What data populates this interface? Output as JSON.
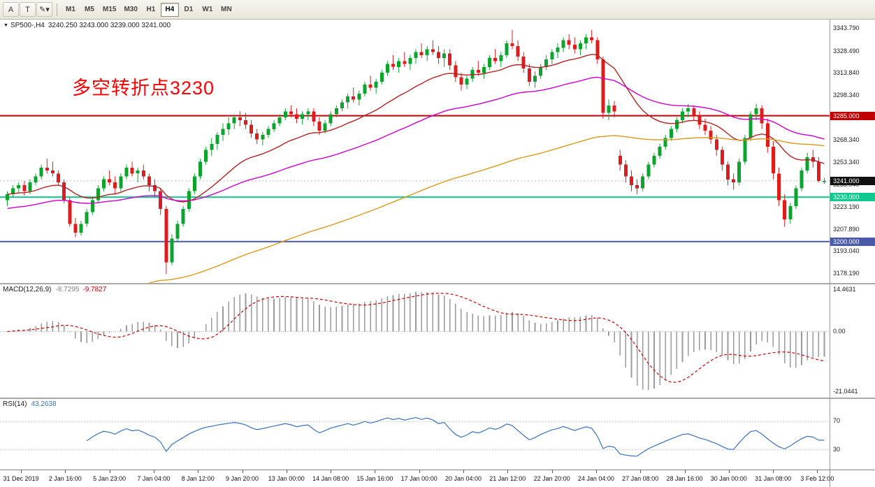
{
  "toolbar": {
    "tools": [
      {
        "label": "A",
        "name": "cursor-tool"
      },
      {
        "label": "T",
        "name": "text-tool"
      },
      {
        "label": "✎",
        "name": "draw-tool",
        "dropdown": "▾"
      }
    ],
    "timeframes": [
      "M1",
      "M5",
      "M15",
      "M30",
      "H1",
      "H4",
      "D1",
      "W1",
      "MN"
    ],
    "active_timeframe": "H4"
  },
  "main_chart": {
    "collapse_icon": "▼",
    "symbol_period": "SP500-,H4",
    "ohlc_text": "3240.250 3243.000 3239.000 3241.000",
    "annotation": {
      "text": "多空转折点3230",
      "color": "#ff0000"
    }
  },
  "indicators": {
    "macd": {
      "label": "MACD(12,26,9)",
      "value_main": "-8.7295",
      "value_signal": "-9.7827",
      "scale_labels": [
        "14.4631",
        "0.00",
        "-21.0441"
      ],
      "histogram_color": "#9a9a9a",
      "signal_color": "#cc0000"
    },
    "rsi": {
      "label": "RSI(14)",
      "value": "43.2638",
      "levels": [
        "70",
        "30"
      ],
      "line_color": "#3a72b8"
    }
  },
  "chart_data": {
    "type": "candlestick",
    "symbol": "SP500-",
    "timeframe": "H4",
    "up_color": "#0da32f",
    "down_color": "#dd1d1d",
    "y_range": {
      "min": 3172,
      "max": 3350
    },
    "y_axis_labels": [
      "3343.790",
      "3328.490",
      "3313.840",
      "3298.340",
      "3283.190",
      "3268.340",
      "3253.340",
      "3238.040",
      "3223.190",
      "3207.890",
      "3193.040",
      "3178.190"
    ],
    "x_labels": [
      "31 Dec 2019",
      "2 Jan 16:00",
      "5 Jan 23:00",
      "7 Jan 04:00",
      "8 Jan 12:00",
      "9 Jan 20:00",
      "13 Jan 00:00",
      "14 Jan 08:00",
      "15 Jan 16:00",
      "17 Jan 00:00",
      "20 Jan 04:00",
      "21 Jan 12:00",
      "22 Jan 20:00",
      "24 Jan 04:00",
      "27 Jan 08:00",
      "28 Jan 16:00",
      "30 Jan 00:00",
      "31 Jan 08:00",
      "3 Feb 12:00"
    ],
    "hlines": [
      {
        "value": 3285.0,
        "label": "3285.000",
        "color": "#c00000"
      },
      {
        "value": 3230.0,
        "label": "3230.000",
        "color": "#10c98f"
      },
      {
        "value": 3200.0,
        "label": "3200.000",
        "color": "#4a5aa8"
      }
    ],
    "current_price": {
      "value": 3241.0,
      "label": "3241.000",
      "color": "#111111"
    },
    "moving_averages": [
      {
        "period": 21,
        "color": "#b22222",
        "seed_offset": 0
      },
      {
        "period": 55,
        "color": "#cc00cc",
        "seed_offset": -10
      },
      {
        "period": 120,
        "color": "#d9991c",
        "seed_offset": -95
      }
    ],
    "ohlc": [
      [
        3228,
        3234,
        3224,
        3232
      ],
      [
        3232,
        3238,
        3230,
        3236
      ],
      [
        3236,
        3240,
        3233,
        3238
      ],
      [
        3238,
        3241,
        3231,
        3234
      ],
      [
        3234,
        3242,
        3232,
        3240
      ],
      [
        3240,
        3246,
        3238,
        3244
      ],
      [
        3244,
        3252,
        3242,
        3250
      ],
      [
        3250,
        3256,
        3246,
        3248
      ],
      [
        3248,
        3254,
        3244,
        3246
      ],
      [
        3246,
        3248,
        3238,
        3240
      ],
      [
        3240,
        3242,
        3226,
        3228
      ],
      [
        3228,
        3230,
        3210,
        3212
      ],
      [
        3212,
        3216,
        3203,
        3206
      ],
      [
        3206,
        3214,
        3204,
        3212
      ],
      [
        3212,
        3222,
        3210,
        3220
      ],
      [
        3220,
        3230,
        3218,
        3228
      ],
      [
        3228,
        3238,
        3226,
        3236
      ],
      [
        3236,
        3244,
        3234,
        3242
      ],
      [
        3242,
        3248,
        3238,
        3240
      ],
      [
        3240,
        3244,
        3232,
        3236
      ],
      [
        3236,
        3246,
        3234,
        3244
      ],
      [
        3244,
        3252,
        3242,
        3250
      ],
      [
        3250,
        3254,
        3244,
        3246
      ],
      [
        3246,
        3250,
        3240,
        3248
      ],
      [
        3248,
        3252,
        3242,
        3244
      ],
      [
        3244,
        3246,
        3234,
        3238
      ],
      [
        3238,
        3242,
        3230,
        3234
      ],
      [
        3234,
        3236,
        3218,
        3222
      ],
      [
        3222,
        3224,
        3178,
        3186
      ],
      [
        3186,
        3205,
        3184,
        3202
      ],
      [
        3202,
        3214,
        3200,
        3212
      ],
      [
        3212,
        3224,
        3210,
        3222
      ],
      [
        3222,
        3236,
        3220,
        3234
      ],
      [
        3234,
        3246,
        3232,
        3244
      ],
      [
        3244,
        3256,
        3242,
        3254
      ],
      [
        3254,
        3264,
        3252,
        3262
      ],
      [
        3262,
        3270,
        3258,
        3266
      ],
      [
        3266,
        3274,
        3262,
        3272
      ],
      [
        3272,
        3280,
        3268,
        3276
      ],
      [
        3276,
        3284,
        3272,
        3280
      ],
      [
        3280,
        3286,
        3276,
        3284
      ],
      [
        3284,
        3288,
        3278,
        3282
      ],
      [
        3282,
        3287,
        3276,
        3279
      ],
      [
        3279,
        3282,
        3270,
        3273
      ],
      [
        3273,
        3276,
        3266,
        3269
      ],
      [
        3269,
        3274,
        3265,
        3272
      ],
      [
        3272,
        3278,
        3270,
        3276
      ],
      [
        3276,
        3282,
        3274,
        3280
      ],
      [
        3280,
        3286,
        3278,
        3284
      ],
      [
        3284,
        3290,
        3282,
        3288
      ],
      [
        3288,
        3292,
        3284,
        3286
      ],
      [
        3286,
        3290,
        3280,
        3283
      ],
      [
        3283,
        3288,
        3279,
        3286
      ],
      [
        3286,
        3290,
        3282,
        3288
      ],
      [
        3288,
        3290,
        3278,
        3281
      ],
      [
        3281,
        3284,
        3272,
        3275
      ],
      [
        3275,
        3282,
        3273,
        3280
      ],
      [
        3280,
        3288,
        3278,
        3286
      ],
      [
        3286,
        3292,
        3284,
        3290
      ],
      [
        3290,
        3296,
        3288,
        3294
      ],
      [
        3294,
        3300,
        3290,
        3298
      ],
      [
        3298,
        3304,
        3294,
        3296
      ],
      [
        3296,
        3302,
        3292,
        3300
      ],
      [
        3300,
        3308,
        3298,
        3306
      ],
      [
        3306,
        3312,
        3302,
        3304
      ],
      [
        3304,
        3310,
        3300,
        3308
      ],
      [
        3308,
        3316,
        3306,
        3314
      ],
      [
        3314,
        3322,
        3312,
        3320
      ],
      [
        3320,
        3326,
        3316,
        3318
      ],
      [
        3318,
        3324,
        3314,
        3322
      ],
      [
        3322,
        3328,
        3318,
        3320
      ],
      [
        3320,
        3326,
        3316,
        3324
      ],
      [
        3324,
        3330,
        3320,
        3328
      ],
      [
        3328,
        3334,
        3324,
        3326
      ],
      [
        3326,
        3332,
        3322,
        3330
      ],
      [
        3330,
        3336,
        3326,
        3328
      ],
      [
        3328,
        3332,
        3320,
        3324
      ],
      [
        3324,
        3330,
        3318,
        3327
      ],
      [
        3327,
        3330,
        3316,
        3319
      ],
      [
        3319,
        3322,
        3308,
        3311
      ],
      [
        3311,
        3314,
        3302,
        3306
      ],
      [
        3306,
        3312,
        3303,
        3310
      ],
      [
        3310,
        3318,
        3308,
        3316
      ],
      [
        3316,
        3322,
        3312,
        3314
      ],
      [
        3314,
        3320,
        3310,
        3318
      ],
      [
        3318,
        3326,
        3316,
        3324
      ],
      [
        3324,
        3330,
        3320,
        3322
      ],
      [
        3322,
        3328,
        3318,
        3326
      ],
      [
        3326,
        3336,
        3324,
        3334
      ],
      [
        3334,
        3343,
        3330,
        3332
      ],
      [
        3332,
        3336,
        3322,
        3325
      ],
      [
        3325,
        3328,
        3314,
        3317
      ],
      [
        3317,
        3320,
        3305,
        3308
      ],
      [
        3308,
        3315,
        3304,
        3312
      ],
      [
        3312,
        3320,
        3310,
        3318
      ],
      [
        3318,
        3326,
        3316,
        3323
      ],
      [
        3323,
        3330,
        3320,
        3328
      ],
      [
        3328,
        3334,
        3324,
        3331
      ],
      [
        3331,
        3338,
        3328,
        3336
      ],
      [
        3336,
        3340,
        3330,
        3333
      ],
      [
        3333,
        3338,
        3327,
        3330
      ],
      [
        3330,
        3336,
        3326,
        3334
      ],
      [
        3334,
        3340,
        3330,
        3338
      ],
      [
        3338,
        3343,
        3334,
        3336
      ],
      [
        3336,
        3338,
        3320,
        3323
      ],
      [
        3323,
        3325,
        3283,
        3287
      ],
      [
        3287,
        3296,
        3282,
        3292
      ],
      [
        3292,
        3295,
        3284,
        3288
      ],
      [
        3258,
        3262,
        3248,
        3252
      ],
      [
        3252,
        3255,
        3240,
        3244
      ],
      [
        3244,
        3248,
        3234,
        3238
      ],
      [
        3238,
        3242,
        3232,
        3236
      ],
      [
        3236,
        3246,
        3234,
        3244
      ],
      [
        3244,
        3254,
        3242,
        3252
      ],
      [
        3252,
        3260,
        3250,
        3258
      ],
      [
        3258,
        3266,
        3256,
        3264
      ],
      [
        3264,
        3272,
        3262,
        3270
      ],
      [
        3270,
        3278,
        3268,
        3276
      ],
      [
        3276,
        3284,
        3274,
        3282
      ],
      [
        3282,
        3290,
        3280,
        3288
      ],
      [
        3288,
        3293,
        3284,
        3290
      ],
      [
        3290,
        3292,
        3282,
        3285
      ],
      [
        3285,
        3288,
        3276,
        3279
      ],
      [
        3279,
        3283,
        3272,
        3275
      ],
      [
        3275,
        3278,
        3266,
        3269
      ],
      [
        3269,
        3272,
        3258,
        3262
      ],
      [
        3262,
        3264,
        3248,
        3252
      ],
      [
        3252,
        3254,
        3238,
        3242
      ],
      [
        3242,
        3246,
        3235,
        3240
      ],
      [
        3240,
        3256,
        3238,
        3254
      ],
      [
        3254,
        3272,
        3252,
        3270
      ],
      [
        3270,
        3288,
        3268,
        3286
      ],
      [
        3286,
        3293,
        3282,
        3290
      ],
      [
        3290,
        3292,
        3276,
        3280
      ],
      [
        3280,
        3283,
        3260,
        3264
      ],
      [
        3264,
        3268,
        3242,
        3246
      ],
      [
        3246,
        3250,
        3224,
        3228
      ],
      [
        3228,
        3232,
        3210,
        3215
      ],
      [
        3215,
        3226,
        3212,
        3224
      ],
      [
        3224,
        3238,
        3222,
        3236
      ],
      [
        3236,
        3250,
        3234,
        3248
      ],
      [
        3248,
        3260,
        3246,
        3257
      ],
      [
        3257,
        3262,
        3250,
        3254
      ],
      [
        3254,
        3257,
        3240,
        3241
      ],
      [
        3240.25,
        3243,
        3239,
        3241
      ]
    ]
  }
}
